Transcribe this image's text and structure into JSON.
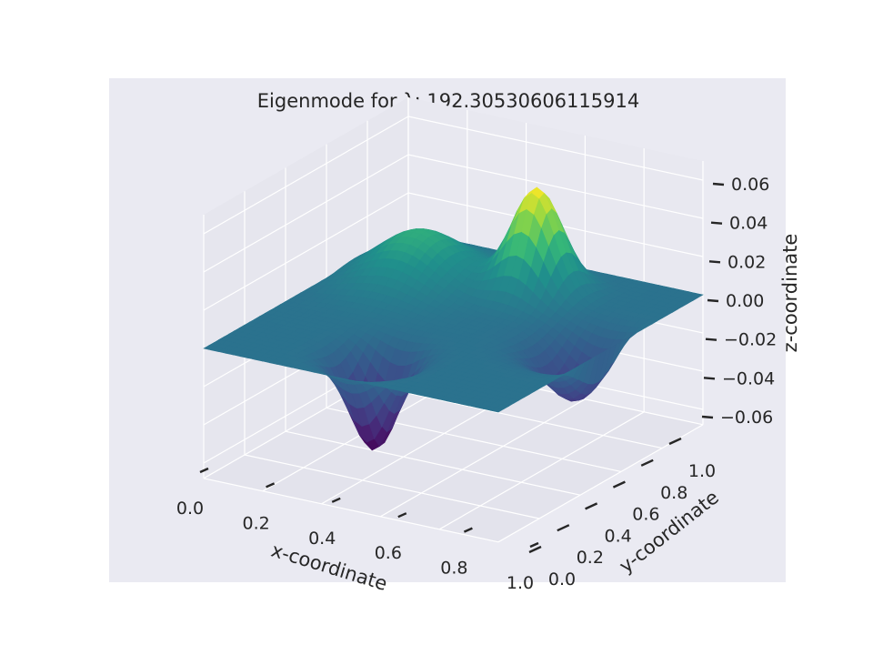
{
  "chart_data": {
    "type": "surface",
    "title": "Eigenmode for λ: 192.30530606115914",
    "xlabel": "x-coordinate",
    "ylabel": "y-coordinate",
    "zlabel": "z-coordinate",
    "xlim": [
      0,
      1
    ],
    "ylim": [
      0,
      1
    ],
    "zlim": [
      -0.06,
      0.06
    ],
    "x_ticks": [
      "0.0",
      "0.2",
      "0.4",
      "0.6",
      "0.8",
      "1.0"
    ],
    "y_ticks": [
      "0.0",
      "0.2",
      "0.4",
      "0.6",
      "0.8",
      "1.0"
    ],
    "z_ticks": [
      "−0.06",
      "−0.04",
      "−0.02",
      "0.00",
      "0.02",
      "0.04",
      "0.06"
    ],
    "z_tick_values": [
      -0.06,
      -0.04,
      -0.02,
      0.0,
      0.02,
      0.04,
      0.06
    ],
    "grid": true,
    "colormap": "viridis",
    "surface": {
      "description_of_features": "membrane eigenmode: positive ridge near low-x high-y, strong positive peak near x≈0.6 y≈0.7, negative trough near x≈0.5 y≈0.15, negative trough near x≈0.9 y≈0.5, flat zero elsewhere",
      "components": [
        {
          "x": 0.22,
          "y": 0.72,
          "amplitude": 0.03,
          "sigma": 0.13
        },
        {
          "x": 0.58,
          "y": 0.8,
          "amplitude": 0.062,
          "sigma": 0.075
        },
        {
          "x": 0.45,
          "y": 0.18,
          "amplitude": -0.058,
          "sigma": 0.07
        },
        {
          "x": 0.92,
          "y": 0.52,
          "amplitude": -0.04,
          "sigma": 0.09
        }
      ]
    },
    "colors": {
      "pane_background": "#eaeaf2",
      "grid": "#ffffff",
      "text": "#262626"
    }
  }
}
